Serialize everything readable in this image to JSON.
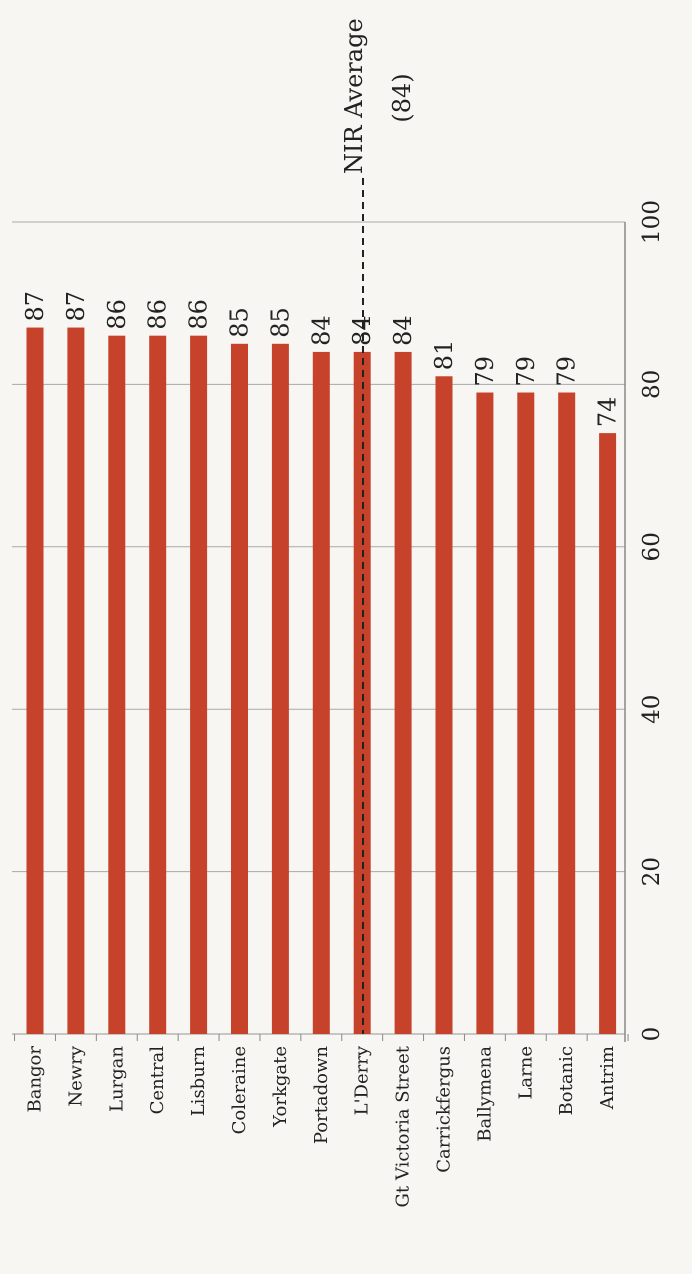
{
  "chart_data": {
    "type": "bar",
    "orientation": "horizontal-rotated",
    "categories": [
      "Bangor",
      "Newry",
      "Lurgan",
      "Central",
      "Lisburn",
      "Coleraine",
      "Yorkgate",
      "Portadown",
      "L'Derry",
      "Gt Victoria Street",
      "Carrickfergus",
      "Ballymena",
      "Larne",
      "Botanic",
      "Antrim"
    ],
    "values": [
      87,
      87,
      86,
      86,
      86,
      85,
      85,
      84,
      84,
      84,
      81,
      79,
      79,
      79,
      74
    ],
    "data_labels": [
      "87",
      "87",
      "86",
      "86",
      "86",
      "85",
      "85",
      "84",
      "84",
      "84",
      "81",
      "79",
      "79",
      "79",
      "74"
    ],
    "value_axis": {
      "range": [
        0,
        100
      ],
      "ticks": [
        0,
        20,
        40,
        60,
        80,
        100
      ],
      "tick_labels": [
        "0",
        "20",
        "40",
        "60",
        "80",
        "100"
      ],
      "gridlines": true
    },
    "reference_line": {
      "value": 84,
      "style": "dashed",
      "label_line1": "NIR Average",
      "label_line2": "(84)"
    },
    "colors": {
      "bar": "#c6422a",
      "grid": "#a9a9a9",
      "axis": "#888888",
      "text": "#222222",
      "background": "#f7f6f2"
    },
    "legend": "none"
  }
}
